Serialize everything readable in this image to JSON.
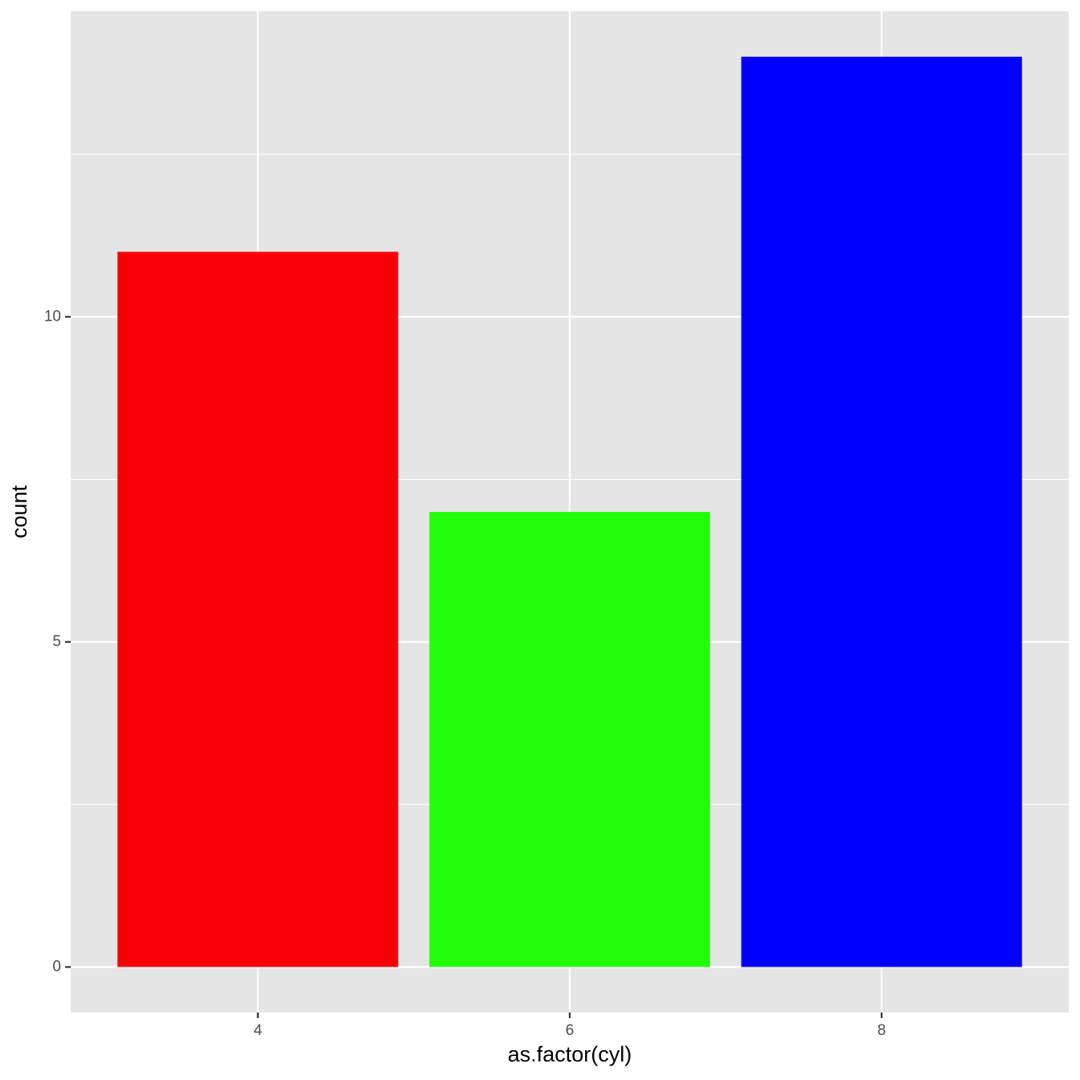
{
  "chart_data": {
    "type": "bar",
    "x_label": "as.factor(cyl)",
    "y_label": "count",
    "categories": [
      "4",
      "6",
      "8"
    ],
    "values": [
      11,
      7,
      14
    ],
    "colors": [
      "#f90008",
      "#22ff08",
      "#0000ff"
    ],
    "ylim": [
      -0.7,
      14.7
    ],
    "yticks": [
      0,
      5,
      10
    ],
    "minor_yticks": [
      2.5,
      7.5,
      12.5
    ],
    "grid": true
  }
}
